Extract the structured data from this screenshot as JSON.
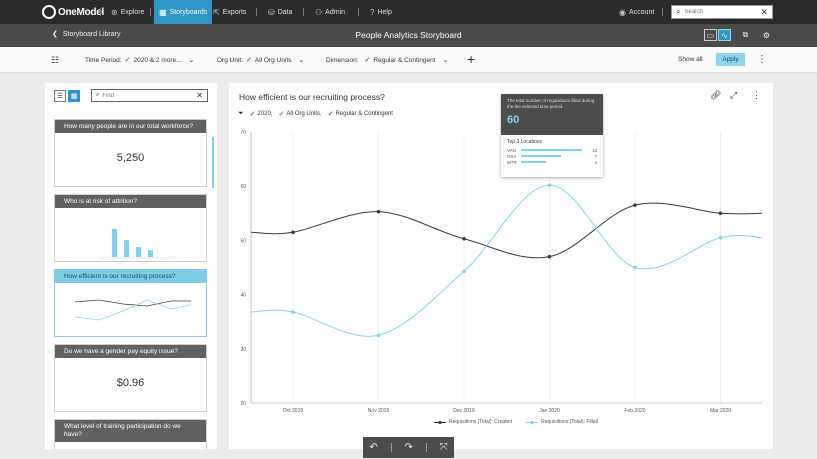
{
  "nav": {
    "logo": "OneModel",
    "items": [
      {
        "label": "Explore",
        "icon": "compass-icon"
      },
      {
        "label": "Storyboards",
        "icon": "grid-icon"
      },
      {
        "label": "Exports",
        "icon": "export-icon"
      },
      {
        "label": "Data",
        "icon": "database-icon"
      },
      {
        "label": "Admin",
        "icon": "admin-icon"
      },
      {
        "label": "Help",
        "icon": "help-icon"
      }
    ],
    "account": "Account",
    "search_placeholder": "Search"
  },
  "titlebar": {
    "back_label": "Storyboard Library",
    "title": "People Analytics Storyboard"
  },
  "filters": {
    "time_period_label": "Time Period:",
    "time_period_value": "2020 & 2 more...",
    "org_unit_label": "Org Unit:",
    "org_unit_value": "All Org Units",
    "dimension_label": "Dimension:",
    "dimension_value": "Regular & Contingent",
    "show_all": "Show all",
    "apply": "Apply"
  },
  "sidebar": {
    "find_placeholder": "Find",
    "cards": [
      {
        "title": "How many people are in our total workforce?",
        "kpi": "5,250"
      },
      {
        "title": "Who is at risk of attrition?",
        "kpi": ""
      },
      {
        "title": "How efficient is our recruiting process?",
        "kpi": ""
      },
      {
        "title": "Do we have a gender pay equity issue?",
        "kpi": "$0.96"
      },
      {
        "title": "What level of training participation do we have?",
        "kpi": ""
      }
    ]
  },
  "main": {
    "title": "How efficient is our recruiting process?",
    "chips": [
      "2020,",
      "All Org Units,",
      "Regular & Contingent"
    ]
  },
  "tooltip": {
    "description": "The total number of requisitions filled during the the selected time period.",
    "value": "60",
    "subtitle": "Top 3 Locations",
    "locations": [
      {
        "name": "VAN",
        "value": 12
      },
      {
        "name": "OSA",
        "value": 7
      },
      {
        "name": "MTR",
        "value": 4
      }
    ]
  },
  "colors": {
    "accent": "#2e97c7",
    "created_series": "#3a3a3a",
    "filled_series": "#7fd3ef"
  },
  "chart_data": {
    "type": "line",
    "title": "How efficient is our recruiting process?",
    "x": [
      "Oct 2019",
      "Nov 2019",
      "Dec 2019",
      "Jan 2020",
      "Feb 2020",
      "Mar 2020"
    ],
    "ylim": [
      20,
      70
    ],
    "yticks": [
      20,
      30,
      40,
      50,
      60,
      70
    ],
    "grid": "vertical",
    "legend": "bottom",
    "series": [
      {
        "name": "Requisitions (Total): Created",
        "values": [
          51.5,
          55.3,
          50.3,
          47,
          56.5,
          55
        ]
      },
      {
        "name": "Requisitions (Total): Filled",
        "values": [
          36.8,
          32.5,
          44.3,
          60.2,
          45,
          50.5
        ]
      }
    ]
  }
}
